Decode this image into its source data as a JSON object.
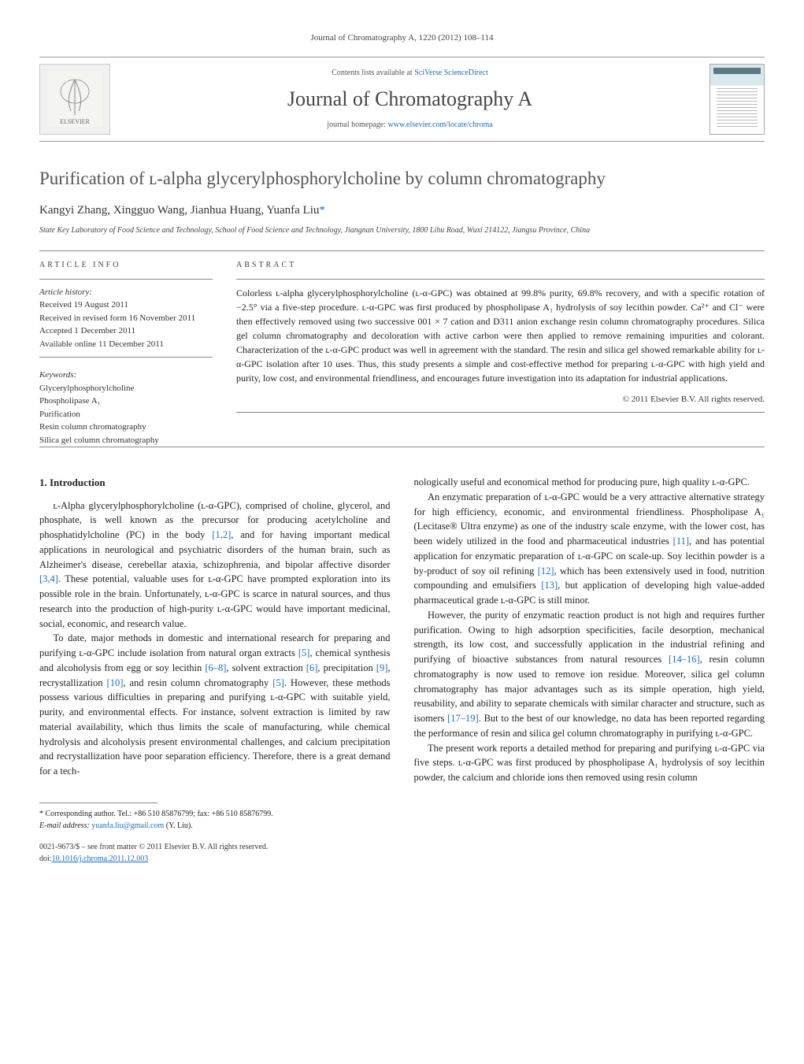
{
  "header": {
    "running_head": "Journal of Chromatography A, 1220 (2012) 108–114",
    "contents_prefix": "Contents lists available at ",
    "contents_link_text": "SciVerse ScienceDirect",
    "journal_title": "Journal of Chromatography A",
    "homepage_prefix": "journal homepage: ",
    "homepage_url": "www.elsevier.com/locate/chroma",
    "publisher_logo_label": "ELSEVIER"
  },
  "article": {
    "title": "Purification of ʟ-alpha glycerylphosphorylcholine by column chromatography",
    "authors": "Kangyi Zhang, Xingguo Wang, Jianhua Huang, Yuanfa Liu",
    "corresp_marker": "*",
    "affiliation": "State Key Laboratory of Food Science and Technology, School of Food Science and Technology, Jiangnan University, 1800 Lihu Road, Wuxi 214122, Jiangsu Province, China"
  },
  "info": {
    "label": "ARTICLE INFO",
    "history_label": "Article history:",
    "received": "Received 19 August 2011",
    "revised": "Received in revised form 16 November 2011",
    "accepted": "Accepted 1 December 2011",
    "online": "Available online 11 December 2011",
    "keywords_label": "Keywords:",
    "keywords": [
      "Glycerylphosphorylcholine",
      "Phospholipase A₁",
      "Purification",
      "Resin column chromatography",
      "Silica gel column chromatography"
    ]
  },
  "abstract": {
    "label": "ABSTRACT",
    "text": "Colorless ʟ-alpha glycerylphosphorylcholine (ʟ-α-GPC) was obtained at 99.8% purity, 69.8% recovery, and with a specific rotation of −2.5° via a five-step procedure. ʟ-α-GPC was first produced by phospholipase A₁ hydrolysis of soy lecithin powder. Ca²⁺ and Cl⁻ were then effectively removed using two successive 001 × 7 cation and D311 anion exchange resin column chromatography procedures. Silica gel column chromatography and decoloration with active carbon were then applied to remove remaining impurities and colorant. Characterization of the ʟ-α-GPC product was well in agreement with the standard. The resin and silica gel showed remarkable ability for ʟ-α-GPC isolation after 10 uses. Thus, this study presents a simple and cost-effective method for preparing ʟ-α-GPC with high yield and purity, low cost, and environmental friendliness, and encourages future investigation into its adaptation for industrial applications.",
    "copyright": "© 2011 Elsevier B.V. All rights reserved."
  },
  "body": {
    "section_title": "1. Introduction",
    "col1_p1": "ʟ-Alpha glycerylphosphorylcholine (ʟ-α-GPC), comprised of choline, glycerol, and phosphate, is well known as the precursor for producing acetylcholine and phosphatidylcholine (PC) in the body [1,2], and for having important medical applications in neurological and psychiatric disorders of the human brain, such as Alzheimer's disease, cerebellar ataxia, schizophrenia, and bipolar affective disorder [3,4]. These potential, valuable uses for ʟ-α-GPC have prompted exploration into its possible role in the brain. Unfortunately, ʟ-α-GPC is scarce in natural sources, and thus research into the production of high-purity ʟ-α-GPC would have important medicinal, social, economic, and research value.",
    "col1_p2": "To date, major methods in domestic and international research for preparing and purifying ʟ-α-GPC include isolation from natural organ extracts [5], chemical synthesis and alcoholysis from egg or soy lecithin [6–8], solvent extraction [6], precipitation [9], recrystallization [10], and resin column chromatography [5]. However, these methods possess various difficulties in preparing and purifying ʟ-α-GPC with suitable yield, purity, and environmental effects. For instance, solvent extraction is limited by raw material availability, which thus limits the scale of manufacturing, while chemical hydrolysis and alcoholysis present environmental challenges, and calcium precipitation and recrystallization have poor separation efficiency. Therefore, there is a great demand for a tech-",
    "col2_p1": "nologically useful and economical method for producing pure, high quality ʟ-α-GPC.",
    "col2_p2": "An enzymatic preparation of ʟ-α-GPC would be a very attractive alternative strategy for high efficiency, economic, and environmental friendliness. Phospholipase A₁ (Lecitase® Ultra enzyme) as one of the industry scale enzyme, with the lower cost, has been widely utilized in the food and pharmaceutical industries [11], and has potential application for enzymatic preparation of ʟ-α-GPC on scale-up. Soy lecithin powder is a by-product of soy oil refining [12], which has been extensively used in food, nutrition compounding and emulsifiers [13], but application of developing high value-added pharmaceutical grade ʟ-α-GPC is still minor.",
    "col2_p3": "However, the purity of enzymatic reaction product is not high and requires further purification. Owing to high adsorption specificities, facile desorption, mechanical strength, its low cost, and successfully application in the industrial refining and purifying of bioactive substances from natural resources [14–16], resin column chromatography is now used to remove ion residue. Moreover, silica gel column chromatography has major advantages such as its simple operation, high yield, reusability, and ability to separate chemicals with similar character and structure, such as isomers [17–19]. But to the best of our knowledge, no data has been reported regarding the performance of resin and silica gel column chromatography in purifying ʟ-α-GPC.",
    "col2_p4": "The present work reports a detailed method for preparing and purifying ʟ-α-GPC via five steps. ʟ-α-GPC was first produced by phospholipase A₁ hydrolysis of soy lecithin powder, the calcium and chloride ions then removed using resin column"
  },
  "refs": {
    "r12": "[1,2]",
    "r34": "[3,4]",
    "r5": "[5]",
    "r68": "[6–8]",
    "r6": "[6]",
    "r9": "[9]",
    "r10": "[10]",
    "r5b": "[5]",
    "r11": "[11]",
    "r12b": "[12]",
    "r13": "[13]",
    "r1416": "[14–16]",
    "r1719": "[17–19]"
  },
  "footer": {
    "corresp_label": "* Corresponding author. Tel.: +86 510 85876799; fax: +86 510 85876799.",
    "email_label": "E-mail address: ",
    "email": "yuanfa.liu@gmail.com",
    "email_suffix": " (Y. Liu).",
    "issn_line": "0021-9673/$ – see front matter © 2011 Elsevier B.V. All rights reserved.",
    "doi_prefix": "doi:",
    "doi": "10.1016/j.chroma.2011.12.003"
  },
  "colors": {
    "link": "#1a6ec1",
    "text": "#222222",
    "muted": "#555555",
    "rule": "#888888"
  }
}
